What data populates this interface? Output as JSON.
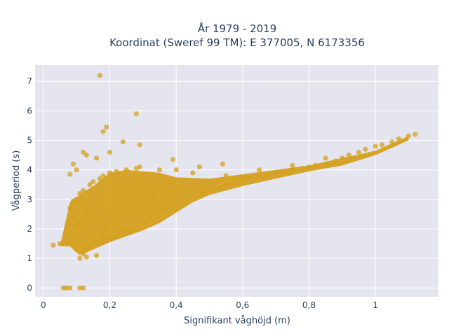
{
  "chart_data": {
    "type": "scatter",
    "title_line1": "År 1979 - 2019",
    "title_line2": "Koordinat (Sweref 99 TM): E 377005, N 6173356",
    "xlabel": "Signifikant våghöjd (m)",
    "ylabel": "Vågperiod (s)",
    "xlim": [
      -0.025,
      1.19
    ],
    "ylim": [
      -0.3,
      7.55
    ],
    "x_ticks": [
      0,
      0.2,
      0.4,
      0.6,
      0.8,
      1.0
    ],
    "x_tick_labels": [
      "0",
      "0,2",
      "0,4",
      "0,6",
      "0,8",
      "1"
    ],
    "y_ticks": [
      0,
      1,
      2,
      3,
      4,
      5,
      6,
      7
    ],
    "y_tick_labels": [
      "0",
      "1",
      "2",
      "3",
      "4",
      "5",
      "6",
      "7"
    ],
    "grid": true,
    "legend": "none",
    "colors": {
      "marker": "#d4a01e",
      "plot_bg": "#e5e5f0",
      "grid": "#ffffff",
      "text": "#2a3f5f"
    },
    "series": [
      {
        "marker_color": "#d4a01e",
        "x": [
          0.03,
          0.05,
          0.07,
          0.08,
          0.08,
          0.08,
          0.09,
          0.09,
          0.09,
          0.1,
          0.1,
          0.1,
          0.11,
          0.11,
          0.11,
          0.12,
          0.12,
          0.12,
          0.13,
          0.13,
          0.14,
          0.14,
          0.15,
          0.15,
          0.16,
          0.16,
          0.17,
          0.18,
          0.18,
          0.19,
          0.2,
          0.2,
          0.22,
          0.22,
          0.24,
          0.25,
          0.25,
          0.27,
          0.28,
          0.28,
          0.3,
          0.3,
          0.32,
          0.33,
          0.35,
          0.35,
          0.37,
          0.38,
          0.4,
          0.4,
          0.42,
          0.45,
          0.45,
          0.48,
          0.5,
          0.5,
          0.53,
          0.55,
          0.55,
          0.58,
          0.6,
          0.62,
          0.65,
          0.65,
          0.68,
          0.7,
          0.72,
          0.75,
          0.75,
          0.78,
          0.8,
          0.82,
          0.85,
          0.85,
          0.88,
          0.9,
          0.92,
          0.95,
          0.97,
          1.0,
          1.02,
          1.05,
          1.07,
          1.1,
          1.12,
          0.06,
          0.07,
          0.08,
          0.11,
          0.12,
          0.17,
          0.18,
          0.19,
          0.28,
          0.29,
          0.12,
          0.13,
          0.16,
          0.09,
          0.08,
          0.1,
          0.2,
          0.24,
          0.29,
          0.39,
          0.47,
          0.54,
          0.12,
          0.14,
          0.17,
          0.19,
          0.21,
          0.23,
          0.26,
          0.3,
          0.33,
          0.36,
          0.15,
          0.18,
          0.22,
          0.26,
          0.31,
          0.11,
          0.13,
          0.16
        ],
        "y": [
          1.45,
          1.5,
          1.55,
          1.6,
          2.2,
          2.7,
          1.5,
          2.4,
          2.95,
          1.3,
          2.1,
          3.0,
          1.2,
          2.2,
          3.2,
          1.15,
          2.0,
          3.3,
          1.3,
          2.6,
          1.4,
          3.5,
          1.5,
          3.6,
          1.55,
          2.5,
          3.7,
          1.6,
          3.8,
          2.6,
          1.7,
          3.9,
          1.75,
          3.95,
          2.0,
          1.9,
          4.0,
          2.5,
          2.0,
          4.05,
          2.2,
          3.8,
          2.4,
          3.5,
          2.6,
          4.0,
          2.7,
          3.6,
          2.8,
          4.0,
          3.0,
          3.1,
          3.9,
          3.2,
          3.3,
          3.6,
          3.4,
          3.5,
          3.8,
          3.6,
          3.7,
          3.75,
          3.8,
          4.0,
          3.85,
          3.9,
          3.95,
          4.0,
          4.15,
          4.05,
          4.1,
          4.15,
          4.2,
          4.4,
          4.3,
          4.4,
          4.5,
          4.6,
          4.7,
          4.8,
          4.85,
          4.95,
          5.05,
          5.15,
          5.2,
          0.0,
          0.0,
          0.0,
          0.0,
          0.0,
          7.2,
          5.3,
          5.45,
          5.9,
          4.85,
          4.6,
          4.5,
          4.4,
          4.2,
          3.85,
          4.0,
          4.6,
          4.95,
          4.1,
          4.35,
          4.1,
          4.2,
          2.8,
          2.6,
          2.3,
          2.0,
          2.4,
          2.9,
          2.6,
          3.2,
          3.1,
          3.4,
          1.8,
          1.7,
          2.2,
          1.9,
          2.3,
          1.0,
          1.05,
          1.1
        ]
      }
    ]
  }
}
